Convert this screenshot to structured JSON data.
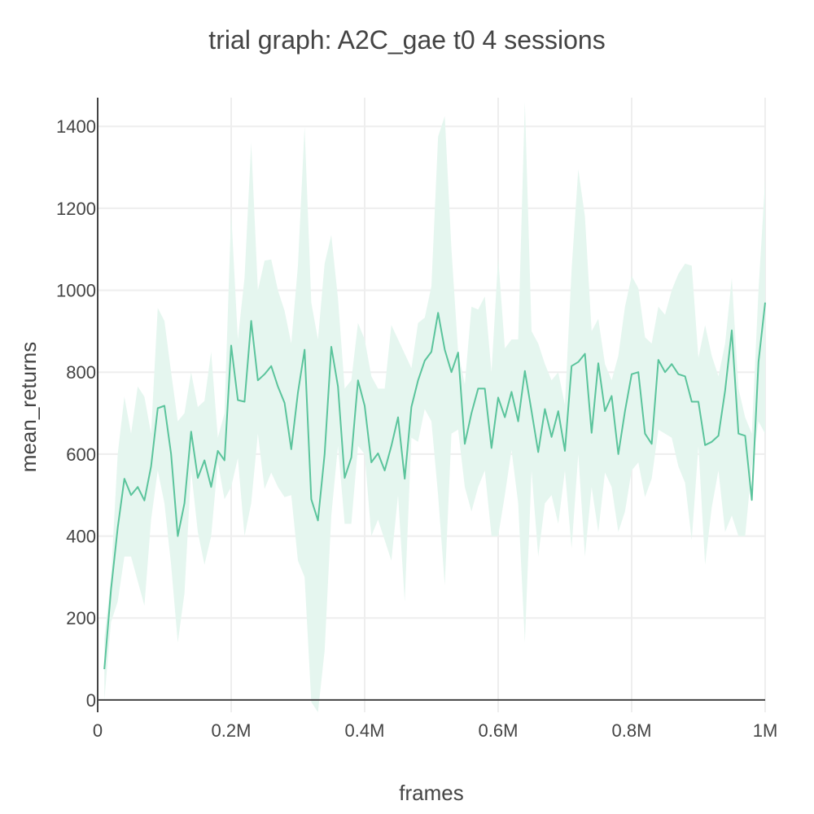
{
  "chart_data": {
    "type": "line",
    "title": "trial graph: A2C_gae t0 4 sessions",
    "xlabel": "frames",
    "ylabel": "mean_returns",
    "xlim": [
      0,
      1000000
    ],
    "ylim": [
      -30,
      1470
    ],
    "grid": true,
    "x_ticks": [
      {
        "value": 0,
        "label": "0"
      },
      {
        "value": 200000,
        "label": "0.2M"
      },
      {
        "value": 400000,
        "label": "0.4M"
      },
      {
        "value": 600000,
        "label": "0.6M"
      },
      {
        "value": 800000,
        "label": "0.8M"
      },
      {
        "value": 1000000,
        "label": "1M"
      }
    ],
    "y_ticks": [
      {
        "value": 0,
        "label": "0"
      },
      {
        "value": 200,
        "label": "200"
      },
      {
        "value": 400,
        "label": "400"
      },
      {
        "value": 600,
        "label": "600"
      },
      {
        "value": 800,
        "label": "800"
      },
      {
        "value": 1000,
        "label": "1000"
      },
      {
        "value": 1200,
        "label": "1200"
      },
      {
        "value": 1400,
        "label": "1400"
      }
    ],
    "colors": {
      "line": "#5bc49c",
      "band": "#e5f6ef"
    },
    "series": [
      {
        "x": [
          10000,
          20000,
          30000,
          40000,
          50000,
          60000,
          70000,
          80000,
          90000,
          100000,
          110000,
          120000,
          130000,
          140000,
          150000,
          160000,
          170000,
          180000,
          190000,
          200000,
          210000,
          220000,
          230000,
          240000,
          250000,
          260000,
          270000,
          280000,
          290000,
          300000,
          310000,
          320000,
          330000,
          340000,
          350000,
          360000,
          370000,
          380000,
          390000,
          400000,
          410000,
          420000,
          430000,
          440000,
          450000,
          460000,
          470000,
          480000,
          490000,
          500000,
          510000,
          520000,
          530000,
          540000,
          550000,
          560000,
          570000,
          580000,
          590000,
          600000,
          610000,
          620000,
          630000,
          640000,
          650000,
          660000,
          670000,
          680000,
          690000,
          700000,
          710000,
          720000,
          730000,
          740000,
          750000,
          760000,
          770000,
          780000,
          790000,
          800000,
          810000,
          820000,
          830000,
          840000,
          850000,
          860000,
          870000,
          880000,
          890000,
          900000,
          910000,
          920000,
          930000,
          940000,
          950000,
          960000,
          970000,
          980000,
          990000,
          1000000
        ],
        "mean": [
          75,
          270,
          420,
          540,
          500,
          520,
          487,
          570,
          712,
          718,
          600,
          400,
          480,
          655,
          542,
          585,
          520,
          608,
          585,
          865,
          732,
          728,
          925,
          780,
          795,
          815,
          765,
          725,
          612,
          750,
          855,
          490,
          438,
          600,
          862,
          765,
          542,
          592,
          780,
          718,
          580,
          602,
          560,
          620,
          690,
          540,
          715,
          780,
          828,
          850,
          945,
          855,
          800,
          848,
          625,
          700,
          760,
          760,
          615,
          738,
          690,
          752,
          680,
          803,
          705,
          605,
          710,
          642,
          705,
          608,
          815,
          825,
          845,
          652,
          822,
          705,
          742,
          600,
          705,
          795,
          800,
          650,
          625,
          830,
          800,
          820,
          795,
          790,
          728,
          728,
          622,
          630,
          645,
          755,
          902,
          650,
          645,
          488,
          825,
          970
        ],
        "upper": [
          150,
          300,
          600,
          740,
          650,
          765,
          740,
          650,
          957,
          925,
          800,
          680,
          700,
          800,
          715,
          730,
          850,
          640,
          700,
          1190,
          880,
          1030,
          1360,
          1000,
          1072,
          1075,
          1000,
          950,
          870,
          1060,
          1400,
          970,
          880,
          1065,
          1135,
          980,
          760,
          780,
          920,
          880,
          790,
          760,
          760,
          915,
          880,
          845,
          810,
          920,
          933,
          1010,
          1375,
          1425,
          1100,
          850,
          770,
          960,
          953,
          985,
          800,
          1080,
          858,
          880,
          880,
          1460,
          900,
          870,
          820,
          780,
          800,
          720,
          1050,
          1295,
          1180,
          900,
          930,
          820,
          780,
          840,
          960,
          1035,
          1005,
          885,
          870,
          960,
          940,
          1000,
          1040,
          1065,
          1060,
          835,
          915,
          840,
          790,
          870,
          1030,
          760,
          690,
          650,
          1000,
          1270
        ],
        "lower": [
          0,
          190,
          240,
          350,
          350,
          290,
          230,
          440,
          560,
          480,
          330,
          140,
          260,
          560,
          410,
          330,
          400,
          580,
          490,
          520,
          590,
          400,
          480,
          650,
          515,
          555,
          520,
          495,
          500,
          340,
          300,
          -5,
          -30,
          120,
          450,
          620,
          430,
          430,
          620,
          600,
          400,
          440,
          390,
          340,
          500,
          240,
          640,
          630,
          710,
          680,
          500,
          280,
          650,
          660,
          520,
          460,
          520,
          560,
          400,
          400,
          500,
          610,
          480,
          140,
          560,
          350,
          480,
          500,
          430,
          560,
          370,
          600,
          350,
          520,
          410,
          555,
          520,
          410,
          460,
          560,
          580,
          495,
          540,
          660,
          650,
          640,
          570,
          530,
          390,
          620,
          330,
          470,
          560,
          410,
          450,
          400,
          400,
          570,
          680,
          650
        ]
      }
    ]
  }
}
